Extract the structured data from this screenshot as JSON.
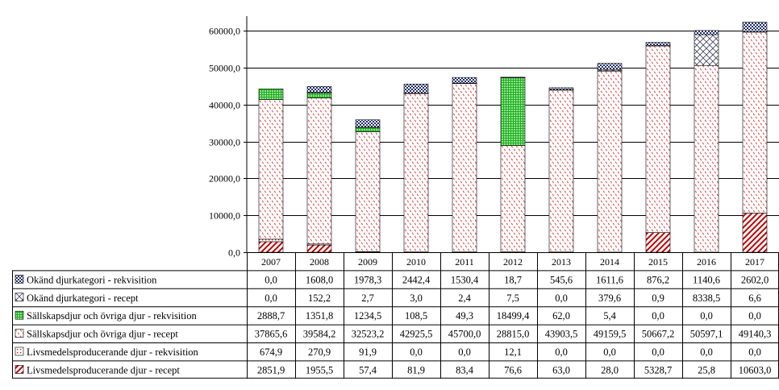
{
  "chart_data": {
    "type": "bar",
    "stacked": true,
    "title": "",
    "xlabel": "",
    "ylabel": "",
    "ylim": [
      0,
      60000
    ],
    "yticks": [
      0,
      10000,
      20000,
      30000,
      40000,
      50000,
      60000
    ],
    "ytick_labels": [
      "0,0",
      "10000,0",
      "20000,0",
      "30000,0",
      "40000,0",
      "50000,0",
      "60000,0"
    ],
    "grid": "horizontal",
    "legend": "data-table below chart",
    "categories": [
      "2007",
      "2008",
      "2009",
      "2010",
      "2011",
      "2012",
      "2013",
      "2014",
      "2015",
      "2016",
      "2017"
    ],
    "series": [
      {
        "name": "Livsmedelsproducerande djur - recept",
        "pattern": "diagonal-stripes",
        "color": "#c00000",
        "values": [
          2851.9,
          1955.5,
          57.4,
          81.9,
          83.4,
          76.6,
          63.0,
          28.0,
          5328.7,
          25.8,
          10603.0
        ],
        "labels": [
          "2851,9",
          "1955,5",
          "57,4",
          "81,9",
          "83,4",
          "76,6",
          "63,0",
          "28,0",
          "5328,7",
          "25,8",
          "10603,0"
        ]
      },
      {
        "name": "Livsmedelsproducerande djur - rekvisition",
        "pattern": "small-dots",
        "color": "#c00000",
        "values": [
          674.9,
          270.9,
          91.9,
          0.0,
          0.0,
          12.1,
          0.0,
          0.0,
          0.0,
          0.0,
          0.0
        ],
        "labels": [
          "674,9",
          "270,9",
          "91,9",
          "0,0",
          "0,0",
          "12,1",
          "0,0",
          "0,0",
          "0,0",
          "0,0",
          "0,0"
        ]
      },
      {
        "name": "Sällskapsdjur och övriga djur - recept",
        "pattern": "dashes",
        "color": "#e06060",
        "values": [
          37865.6,
          39584.2,
          32523.2,
          42925.5,
          45700.0,
          28815.0,
          43903.5,
          49159.5,
          50667.2,
          50597.1,
          49140.3
        ],
        "labels": [
          "37865,6",
          "39584,2",
          "32523,2",
          "42925,5",
          "45700,0",
          "28815,0",
          "43903,5",
          "49159,5",
          "50667,2",
          "50597,1",
          "49140,3"
        ]
      },
      {
        "name": "Sällskapsdjur och övriga djur - rekvisition",
        "pattern": "grid",
        "color": "#33cc33",
        "values": [
          2888.7,
          1351.8,
          1234.5,
          108.5,
          49.3,
          18499.4,
          62.0,
          5.4,
          0.0,
          0.0,
          0.0
        ],
        "labels": [
          "2888,7",
          "1351,8",
          "1234,5",
          "108,5",
          "49,3",
          "18499,4",
          "62,0",
          "5,4",
          "0,0",
          "0,0",
          "0,0"
        ]
      },
      {
        "name": "Okänd djurkategori - recept",
        "pattern": "crosshatch",
        "color": "#404060",
        "values": [
          0.0,
          152.2,
          2.7,
          3.0,
          2.4,
          7.5,
          0.0,
          379.6,
          0.9,
          8338.5,
          6.6
        ],
        "labels": [
          "0,0",
          "152,2",
          "2,7",
          "3,0",
          "2,4",
          "7,5",
          "0,0",
          "379,6",
          "0,9",
          "8338,5",
          "6,6"
        ]
      },
      {
        "name": "Okänd djurkategori - rekvisition",
        "pattern": "dense-dots",
        "color": "#1f2d6b",
        "values": [
          0.0,
          1608.0,
          1978.3,
          2442.4,
          1530.4,
          18.7,
          545.6,
          1611.6,
          876.2,
          1140.6,
          2602.0
        ],
        "labels": [
          "0,0",
          "1608,0",
          "1978,3",
          "2442,4",
          "1530,4",
          "18,7",
          "545,6",
          "1611,6",
          "876,2",
          "1140,6",
          "2602,0"
        ]
      }
    ]
  }
}
